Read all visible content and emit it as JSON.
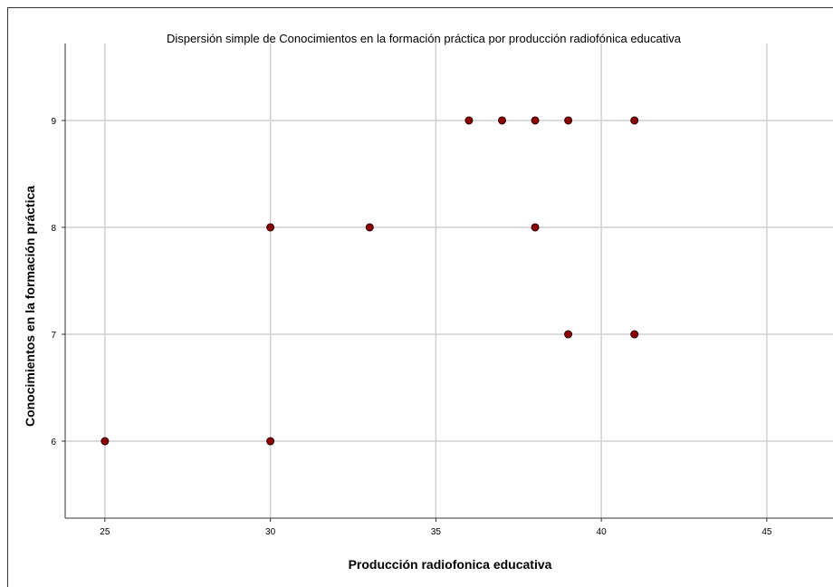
{
  "chart_data": {
    "type": "scatter",
    "title": "Dispersión simple de Conocimientos en la formación práctica por producción radiofónica educativa",
    "xlabel": "Producción radiofonica educativa",
    "ylabel": "Conocimientos en la formación práctica",
    "xlim": [
      23.8,
      47
    ],
    "ylim": [
      5.28,
      9.72
    ],
    "xticks": [
      25,
      30,
      35,
      40,
      45
    ],
    "yticks": [
      6,
      7,
      8,
      9
    ],
    "grid": true,
    "marker_color": "#8b0000",
    "points": [
      {
        "x": 36,
        "y": 9
      },
      {
        "x": 37,
        "y": 9
      },
      {
        "x": 38,
        "y": 9
      },
      {
        "x": 39,
        "y": 9
      },
      {
        "x": 41,
        "y": 9
      },
      {
        "x": 30,
        "y": 8
      },
      {
        "x": 33,
        "y": 8
      },
      {
        "x": 38,
        "y": 8
      },
      {
        "x": 39,
        "y": 7
      },
      {
        "x": 41,
        "y": 7
      },
      {
        "x": 25,
        "y": 6
      },
      {
        "x": 30,
        "y": 6
      }
    ]
  }
}
